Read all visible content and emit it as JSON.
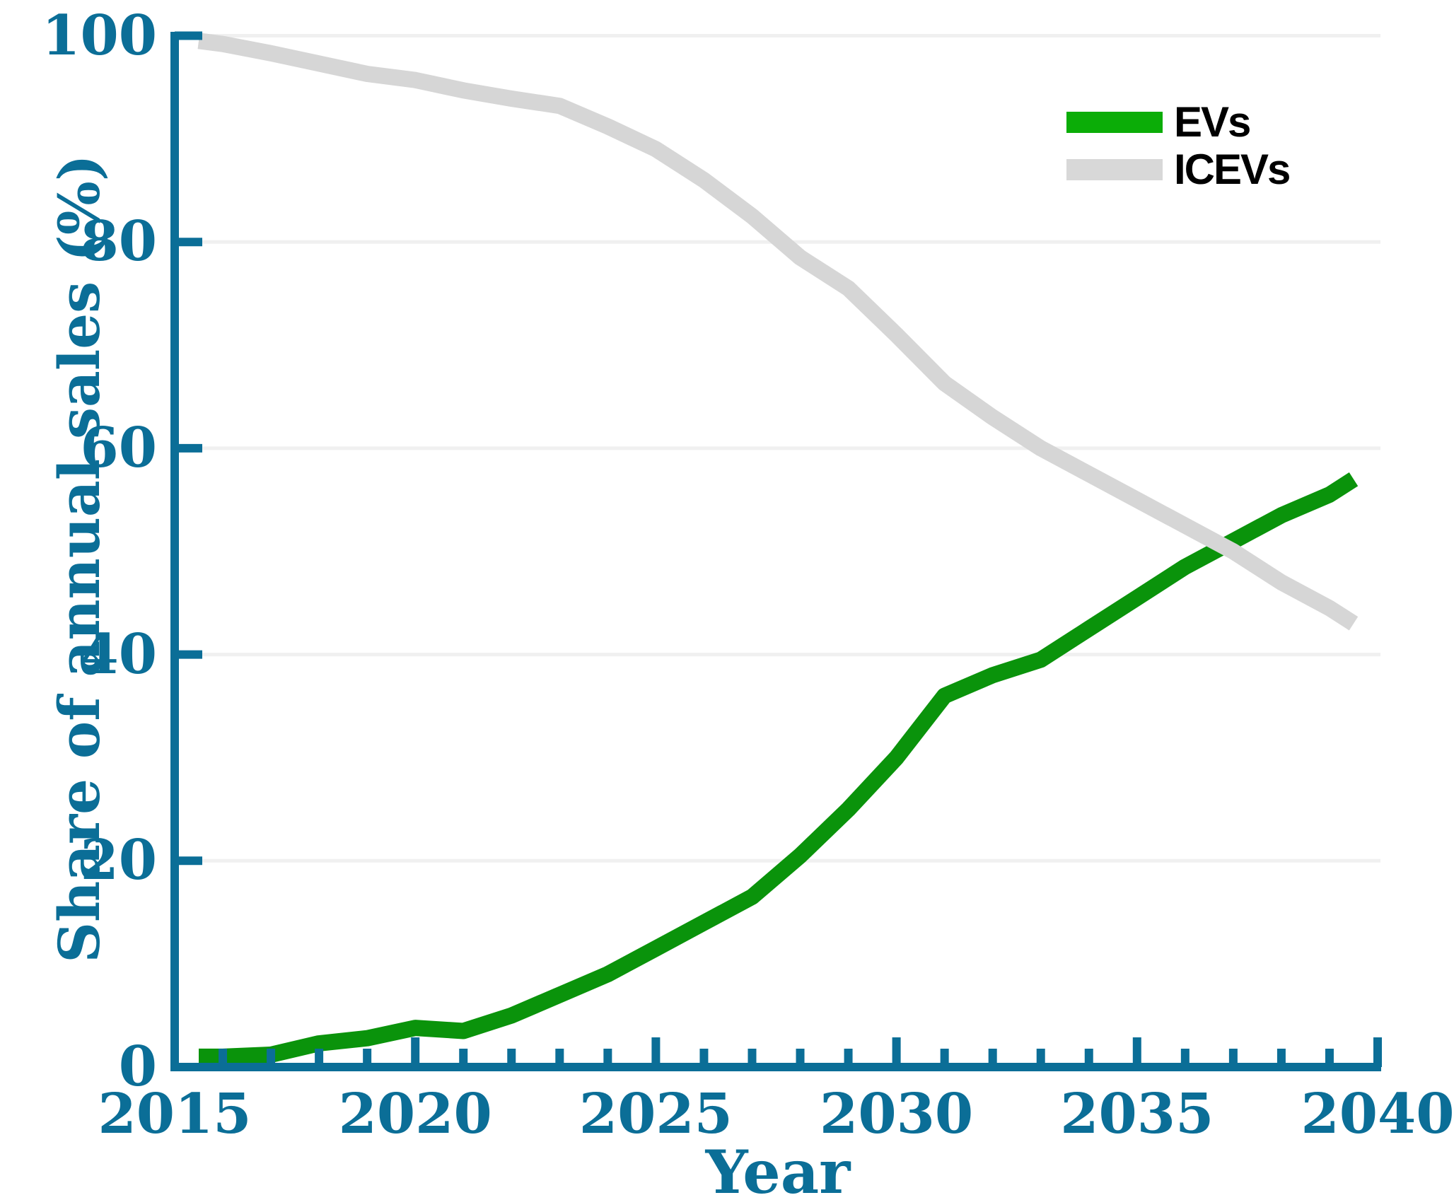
{
  "chart_data": {
    "type": "line",
    "title": "",
    "xlabel": "Year",
    "ylabel": "Share of annual sales (%)",
    "xlim": [
      2015,
      2040
    ],
    "ylim": [
      0,
      100
    ],
    "grid": "horizontal-only",
    "gridline_color": "#f0f0f0",
    "axis_color": "#0b6e97",
    "tick_label_color": "#0b6e97",
    "background_color": "#ffffff",
    "legend_position": "upper-right",
    "legend_text_color": "#000000",
    "yticks": [
      0,
      20,
      40,
      60,
      80,
      100
    ],
    "xticks_major": [
      2015,
      2020,
      2025,
      2030,
      2035,
      2040
    ],
    "xticks_minor": [
      2016,
      2017,
      2018,
      2019,
      2021,
      2022,
      2023,
      2024,
      2026,
      2027,
      2028,
      2029,
      2031,
      2032,
      2033,
      2034,
      2036,
      2037,
      2038,
      2039
    ],
    "x": [
      2015.5,
      2016,
      2017,
      2018,
      2019,
      2020,
      2021,
      2022,
      2023,
      2024,
      2025,
      2026,
      2027,
      2028,
      2029,
      2030,
      2031,
      2032,
      2033,
      2034,
      2035,
      2036,
      2037,
      2038,
      2039,
      2039.5
    ],
    "series": [
      {
        "name": "EVs",
        "color": "#0a930b",
        "legend_color": "#0bad07",
        "values": [
          1,
          1,
          1.2,
          2.3,
          2.8,
          3.8,
          3.5,
          5,
          7,
          9,
          11.5,
          14,
          16.5,
          20.5,
          25,
          30,
          36,
          38,
          39.5,
          42.5,
          45.5,
          48.5,
          51,
          53.5,
          55.5,
          57
        ]
      },
      {
        "name": "ICEVs",
        "color": "#d6d6d6",
        "legend_color": "#d8d8d8",
        "values": [
          99.5,
          99.2,
          98.3,
          97.3,
          96.3,
          95.7,
          94.7,
          93.9,
          93.2,
          91.2,
          89,
          86,
          82.5,
          78.5,
          75.5,
          71,
          66.3,
          63,
          60,
          57.5,
          55,
          52.5,
          50,
          47,
          44.5,
          43
        ]
      }
    ]
  }
}
